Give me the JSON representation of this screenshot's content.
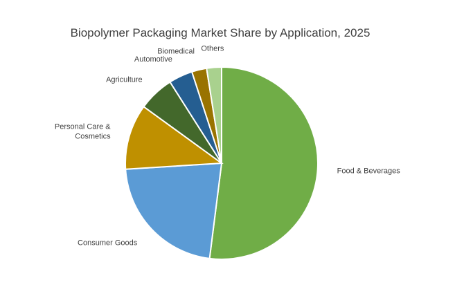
{
  "chart_data": {
    "type": "pie",
    "title": "Biopolymer Packaging Market Share by Application, 2025",
    "slices": [
      {
        "label": [
          "Food & Beverages"
        ],
        "value": 52,
        "color": "#70AD47"
      },
      {
        "label": [
          "Consumer Goods"
        ],
        "value": 22,
        "color": "#5B9BD5"
      },
      {
        "label": [
          "Personal Care &",
          "Cosmetics"
        ],
        "value": 11,
        "color": "#BF9000"
      },
      {
        "label": [
          "Agriculture"
        ],
        "value": 6,
        "color": "#43682B"
      },
      {
        "label": [
          "Automotive"
        ],
        "value": 4,
        "color": "#255E91"
      },
      {
        "label": [
          "Biomedical"
        ],
        "value": 2.5,
        "color": "#997300"
      },
      {
        "label": [
          "Others"
        ],
        "value": 2.5,
        "color": "#A9D18E"
      }
    ],
    "legend": "none"
  }
}
